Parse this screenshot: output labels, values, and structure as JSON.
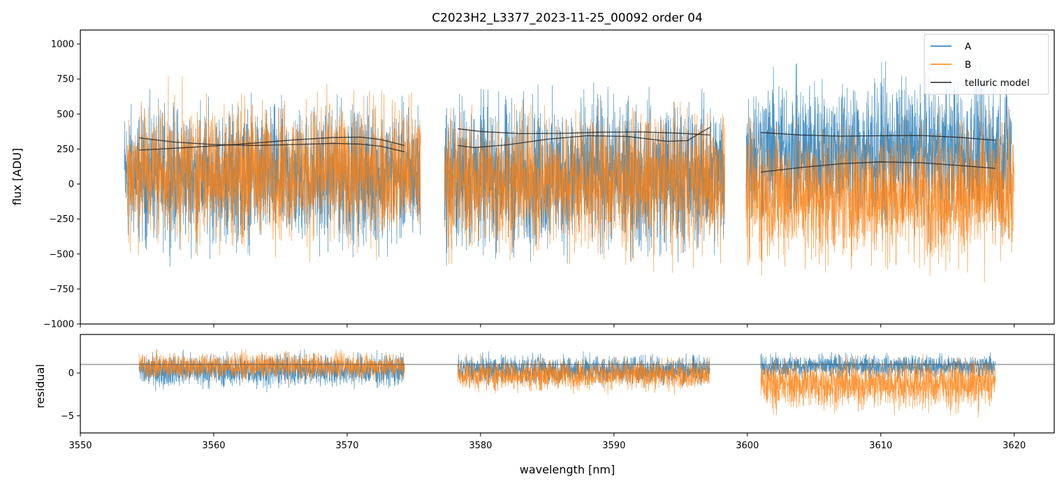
{
  "figure": {
    "title": "C2023H2_L3377_2023-11-25_00092  order 04"
  },
  "colors": {
    "A": "#1f77b4",
    "B": "#ff7f0e",
    "model": "#222222",
    "refline": "#555555"
  },
  "chart_data": [
    {
      "type": "line",
      "panel": "top",
      "title": "C2023H2_L3377_2023-11-25_00092  order 04",
      "xlabel": "",
      "ylabel": "flux [ADU]",
      "xlim": [
        3550,
        3623
      ],
      "ylim": [
        -1000,
        1100
      ],
      "yticks": [
        -1000,
        -750,
        -500,
        -250,
        0,
        250,
        500,
        750,
        1000
      ],
      "yticklabels": [
        "−1000",
        "−750",
        "−500",
        "−250",
        "0",
        "250",
        "500",
        "750",
        "1000"
      ],
      "legend": {
        "placement": "top-right",
        "entries": [
          "A",
          "B",
          "telluric model"
        ]
      },
      "series": [
        {
          "name": "A",
          "segments": [
            {
              "x_range": [
                3553.3,
                3575.5
              ],
              "center": 60,
              "spread": 430
            },
            {
              "x_range": [
                3577.3,
                3598.3
              ],
              "center": 60,
              "spread": 480
            },
            {
              "x_range": [
                3599.9,
                3619.8
              ],
              "center": 230,
              "spread": 450
            }
          ]
        },
        {
          "name": "B",
          "segments": [
            {
              "x_range": [
                3553.5,
                3575.5
              ],
              "center": 90,
              "spread": 440
            },
            {
              "x_range": [
                3577.3,
                3598.3
              ],
              "center": 20,
              "spread": 430
            },
            {
              "x_range": [
                3599.9,
                3620.0
              ],
              "center": -70,
              "spread": 430
            }
          ]
        },
        {
          "name": "telluric model",
          "curves": [
            {
              "x": [
                3554.4,
                3557,
                3560,
                3563,
                3566,
                3569,
                3571,
                3572.5,
                3574.3
              ],
              "y": [
                330,
                300,
                282,
                275,
                282,
                290,
                285,
                270,
                230
              ]
            },
            {
              "x": [
                3554.4,
                3557,
                3560,
                3563,
                3566,
                3569,
                3571,
                3572.5,
                3574.3
              ],
              "y": [
                242,
                255,
                272,
                292,
                315,
                333,
                335,
                318,
                275
              ]
            },
            {
              "x": [
                3578.3,
                3580,
                3583,
                3586,
                3589,
                3592,
                3595,
                3597.2
              ],
              "y": [
                395,
                375,
                360,
                362,
                370,
                372,
                363,
                350
              ]
            },
            {
              "x": [
                3578.3,
                3579.5,
                3582,
                3585,
                3588,
                3591,
                3594,
                3595.5,
                3597.2
              ],
              "y": [
                275,
                260,
                280,
                320,
                345,
                340,
                305,
                310,
                405
              ]
            },
            {
              "x": [
                3601.0,
                3604,
                3607,
                3610,
                3613,
                3616,
                3618.6
              ],
              "y": [
                368,
                350,
                342,
                345,
                347,
                333,
                312
              ]
            },
            {
              "x": [
                3601.0,
                3604,
                3607,
                3610,
                3613,
                3616,
                3618.6
              ],
              "y": [
                85,
                118,
                145,
                158,
                152,
                132,
                112
              ]
            }
          ]
        }
      ]
    },
    {
      "type": "line",
      "panel": "bottom",
      "xlabel": "wavelength [nm]",
      "ylabel": "residual",
      "xlim": [
        3550,
        3623
      ],
      "ylim": [
        -7,
        4.5
      ],
      "xticks": [
        3550,
        3560,
        3570,
        3580,
        3590,
        3600,
        3610,
        3620
      ],
      "xticklabels": [
        "3550",
        "3560",
        "3570",
        "3580",
        "3590",
        "3600",
        "3610",
        "3620"
      ],
      "yticks": [
        -5,
        0
      ],
      "yticklabels": [
        "−5",
        "0"
      ],
      "reference_line": 1,
      "series": [
        {
          "name": "A",
          "segments": [
            {
              "x_range": [
                3554.4,
                3574.3
              ],
              "center": 0.3,
              "spread": 1.7
            },
            {
              "x_range": [
                3578.3,
                3597.2
              ],
              "center": 0.4,
              "spread": 1.5
            },
            {
              "x_range": [
                3601.0,
                3618.6
              ],
              "center": 0.8,
              "spread": 1.2
            }
          ]
        },
        {
          "name": "B",
          "segments": [
            {
              "x_range": [
                3554.4,
                3574.3
              ],
              "center": 0.8,
              "spread": 1.4
            },
            {
              "x_range": [
                3578.3,
                3597.2
              ],
              "center": -0.2,
              "spread": 1.6
            },
            {
              "x_range": [
                3601.0,
                3618.6
              ],
              "center": -1.3,
              "spread": 2.6
            }
          ]
        }
      ]
    }
  ]
}
